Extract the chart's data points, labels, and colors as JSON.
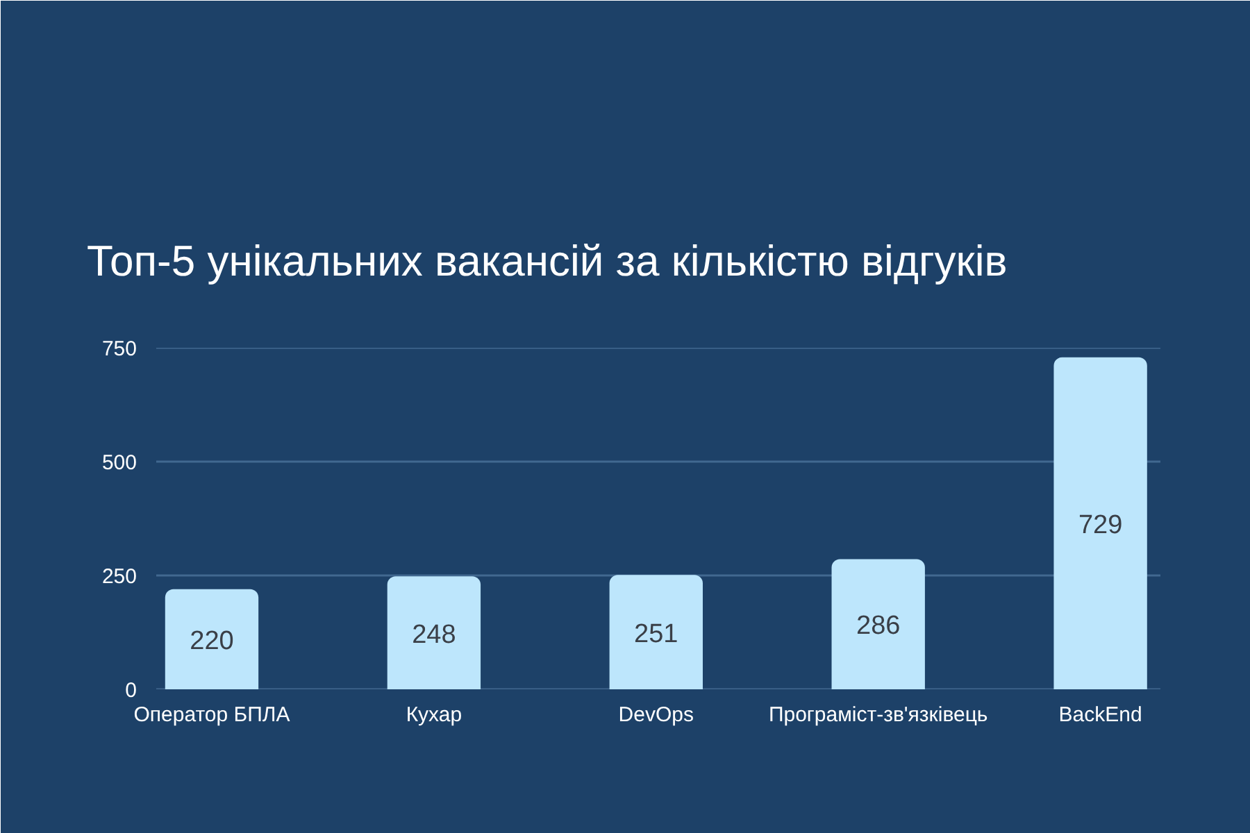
{
  "chart_data": {
    "type": "bar",
    "title": "Топ-5 унікальних вакансій за кількістю відгуків",
    "categories": [
      "Оператор БПЛА",
      "Кухар",
      "DevOps",
      "Програміст-зв'язківець",
      "BackEnd"
    ],
    "values": [
      220,
      248,
      251,
      286,
      729
    ],
    "color": "#bde6fc",
    "ylim": [
      0,
      750
    ],
    "yticks": [
      0,
      250,
      500,
      750
    ],
    "grid": "y",
    "data_labels": true
  }
}
